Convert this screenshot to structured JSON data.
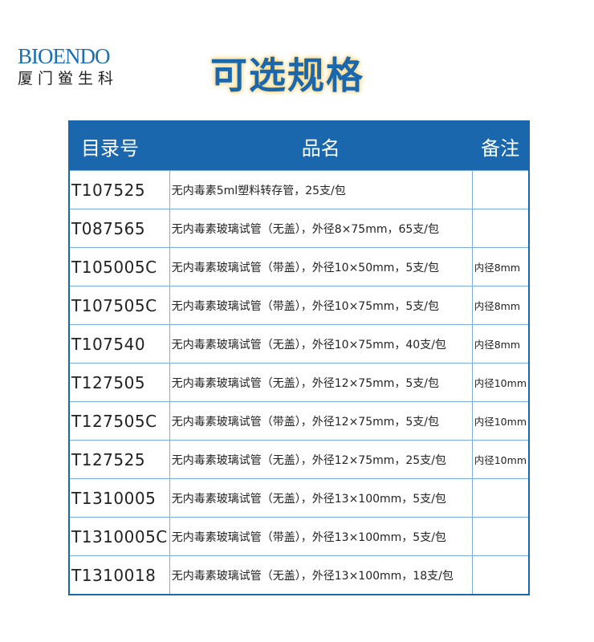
{
  "logo": {
    "en": "BIOENDO",
    "cn": "厦门鲎生科"
  },
  "title": "可选规格",
  "colors": {
    "primary": "#1a67ad",
    "glow": "#f7d98a"
  },
  "table": {
    "headers": [
      "目录号",
      "品名",
      "备注"
    ],
    "rows": [
      {
        "code": "T107525",
        "name": "无内毒素5ml塑料转存管，25支/包",
        "note": ""
      },
      {
        "code": "T087565",
        "name": "无内毒素玻璃试管（无盖），外径8×75mm，65支/包",
        "note": ""
      },
      {
        "code": "T105005C",
        "name": "无内毒素玻璃试管（带盖），外径10×50mm，5支/包",
        "note": "内径8mm"
      },
      {
        "code": "T107505C",
        "name": "无内毒素玻璃试管（带盖），外径10×75mm，5支/包",
        "note": "内径8mm"
      },
      {
        "code": "T107540",
        "name": "无内毒素玻璃试管（无盖），外径10×75mm，40支/包",
        "note": "内径8mm"
      },
      {
        "code": "T127505",
        "name": "无内毒素玻璃试管（无盖），外径12×75mm，5支/包",
        "note": "内径10mm"
      },
      {
        "code": "T127505C",
        "name": "无内毒素玻璃试管（带盖），外径12×75mm，5支/包",
        "note": "内径10mm"
      },
      {
        "code": "T127525",
        "name": "无内毒素玻璃试管（无盖），外径12×75mm，25支/包",
        "note": "内径10mm"
      },
      {
        "code": "T1310005",
        "name": "无内毒素玻璃试管（无盖），外径13×100mm，5支/包",
        "note": ""
      },
      {
        "code": "T1310005C",
        "name": "无内毒素玻璃试管（带盖），外径13×100mm，5支/包",
        "note": ""
      },
      {
        "code": "T1310018",
        "name": "无内毒素玻璃试管（无盖），外径13×100mm，18支/包",
        "note": ""
      }
    ]
  }
}
